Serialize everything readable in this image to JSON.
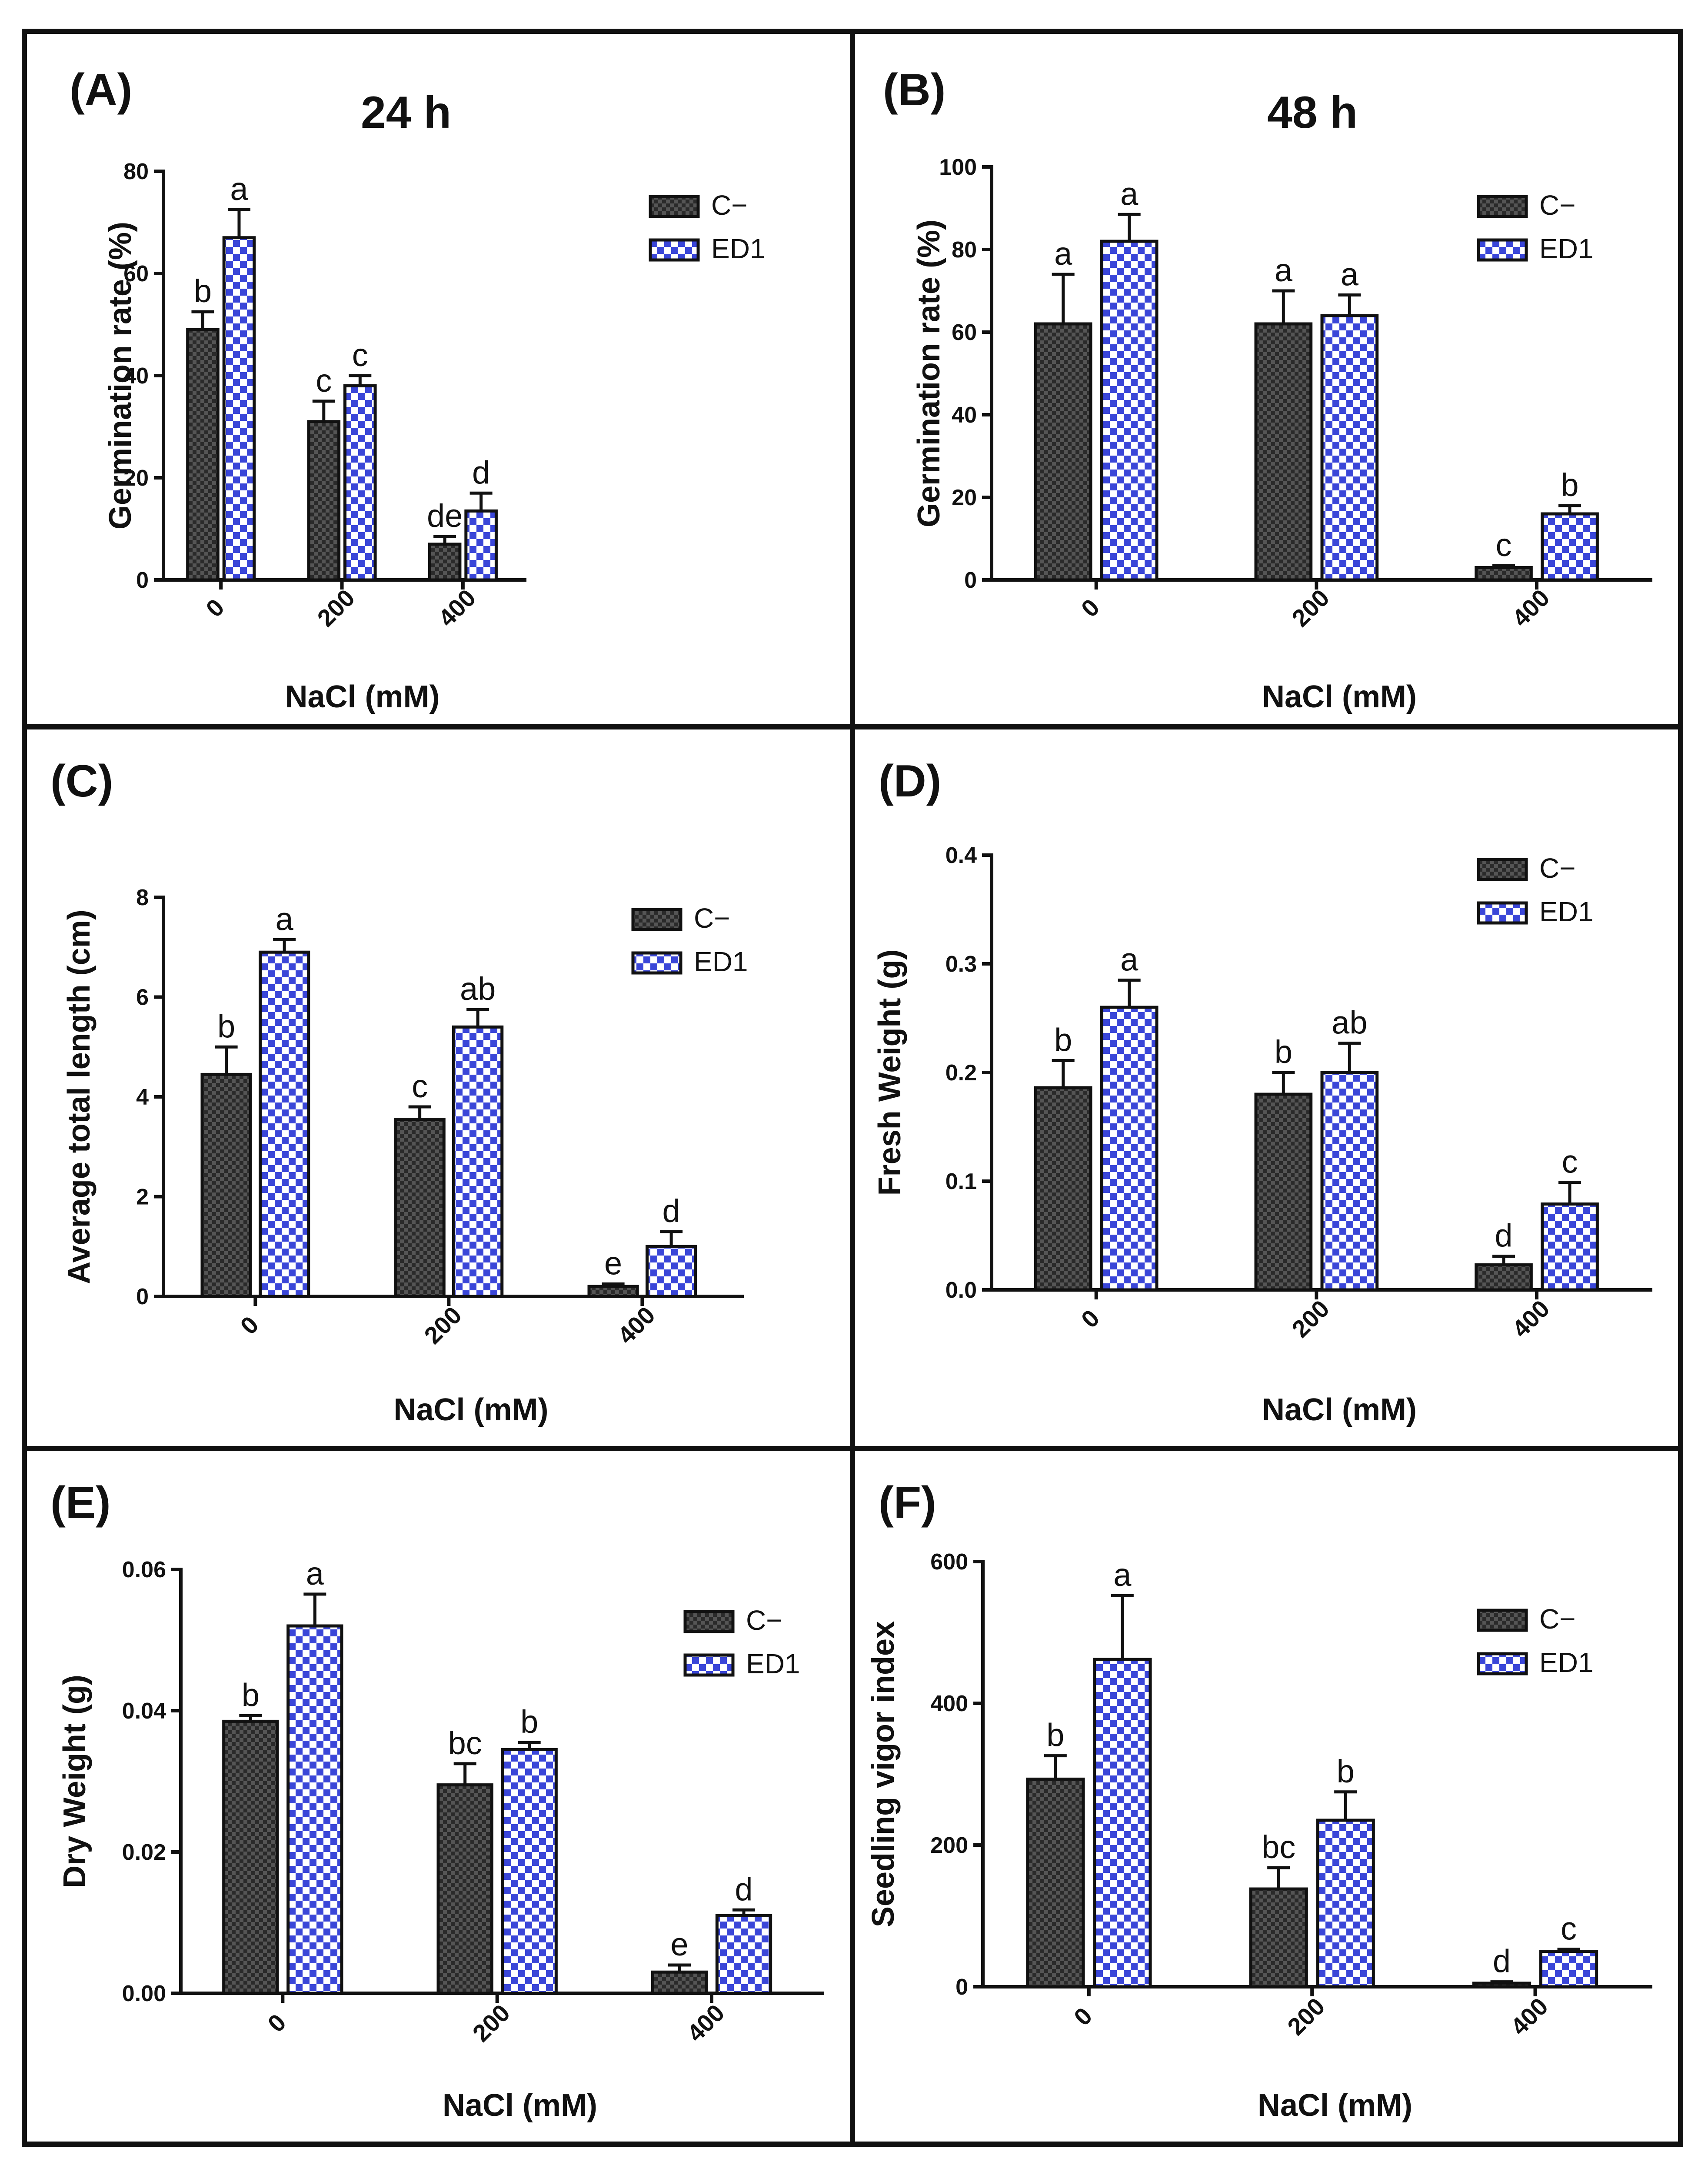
{
  "chart_data": [
    {
      "panel": "(A)",
      "type": "bar",
      "title": "24 h",
      "xlabel": "NaCl (mM)",
      "ylabel": "Germination rate (%)",
      "categories": [
        "0",
        "200",
        "400"
      ],
      "ylim": [
        0,
        80
      ],
      "yticks": [
        "0",
        "20",
        "40",
        "60",
        "80"
      ],
      "series": [
        {
          "name": "C−",
          "values": [
            49,
            31,
            7
          ],
          "errors": [
            3.5,
            4,
            1.5
          ],
          "letters": [
            "b",
            "c",
            "de"
          ]
        },
        {
          "name": "ED1",
          "values": [
            67,
            38,
            13.5
          ],
          "errors": [
            5.5,
            2,
            3.5
          ],
          "letters": [
            "a",
            "c",
            "d"
          ]
        }
      ]
    },
    {
      "panel": "(B)",
      "type": "bar",
      "title": "48 h",
      "xlabel": "NaCl (mM)",
      "ylabel": "Germination rate (%)",
      "categories": [
        "0",
        "200",
        "400"
      ],
      "ylim": [
        0,
        100
      ],
      "yticks": [
        "0",
        "20",
        "40",
        "60",
        "80",
        "100"
      ],
      "series": [
        {
          "name": "C−",
          "values": [
            62,
            62,
            3
          ],
          "errors": [
            12,
            8,
            0.5
          ],
          "letters": [
            "a",
            "a",
            "c"
          ]
        },
        {
          "name": "ED1",
          "values": [
            82,
            64,
            16
          ],
          "errors": [
            6.5,
            5,
            2
          ],
          "letters": [
            "a",
            "a",
            "b"
          ]
        }
      ]
    },
    {
      "panel": "(C)",
      "type": "bar",
      "title": "",
      "xlabel": "NaCl (mM)",
      "ylabel": "Average total length (cm)",
      "categories": [
        "0",
        "200",
        "400"
      ],
      "ylim": [
        0,
        8
      ],
      "yticks": [
        "0",
        "2",
        "4",
        "6",
        "8"
      ],
      "series": [
        {
          "name": "C−",
          "values": [
            4.45,
            3.55,
            0.2
          ],
          "errors": [
            0.55,
            0.25,
            0.05
          ],
          "letters": [
            "b",
            "c",
            "e"
          ]
        },
        {
          "name": "ED1",
          "values": [
            6.9,
            5.4,
            1.0
          ],
          "errors": [
            0.25,
            0.35,
            0.3
          ],
          "letters": [
            "a",
            "ab",
            "d"
          ]
        }
      ]
    },
    {
      "panel": "(D)",
      "type": "bar",
      "title": "",
      "xlabel": "NaCl (mM)",
      "ylabel": "Fresh Weight (g)",
      "categories": [
        "0",
        "200",
        "400"
      ],
      "ylim": [
        0,
        0.4
      ],
      "yticks": [
        "0.0",
        "0.1",
        "0.2",
        "0.3",
        "0.4"
      ],
      "series": [
        {
          "name": "C−",
          "values": [
            0.186,
            0.18,
            0.023
          ],
          "errors": [
            0.025,
            0.02,
            0.008
          ],
          "letters": [
            "b",
            "b",
            "d"
          ]
        },
        {
          "name": "ED1",
          "values": [
            0.26,
            0.2,
            0.079
          ],
          "errors": [
            0.025,
            0.027,
            0.02
          ],
          "letters": [
            "a",
            "ab",
            "c"
          ]
        }
      ]
    },
    {
      "panel": "(E)",
      "type": "bar",
      "title": "",
      "xlabel": "NaCl (mM)",
      "ylabel": "Dry Weight (g)",
      "categories": [
        "0",
        "200",
        "400"
      ],
      "ylim": [
        0,
        0.06
      ],
      "yticks": [
        "0.00",
        "0.02",
        "0.04",
        "0.06"
      ],
      "series": [
        {
          "name": "C−",
          "values": [
            0.0385,
            0.0295,
            0.003
          ],
          "errors": [
            0.0008,
            0.003,
            0.001
          ],
          "letters": [
            "b",
            "bc",
            "e"
          ]
        },
        {
          "name": "ED1",
          "values": [
            0.052,
            0.0345,
            0.011
          ],
          "errors": [
            0.0045,
            0.001,
            0.0008
          ],
          "letters": [
            "a",
            "b",
            "d"
          ]
        }
      ]
    },
    {
      "panel": "(F)",
      "type": "bar",
      "title": "",
      "xlabel": "NaCl (mM)",
      "ylabel": "Seedling vigor index",
      "categories": [
        "0",
        "200",
        "400"
      ],
      "ylim": [
        0,
        600
      ],
      "yticks": [
        "0",
        "200",
        "400",
        "600"
      ],
      "series": [
        {
          "name": "C−",
          "values": [
            293,
            138,
            5
          ],
          "errors": [
            33,
            30,
            2
          ],
          "letters": [
            "b",
            "bc",
            "d"
          ]
        },
        {
          "name": "ED1",
          "values": [
            462,
            235,
            50
          ],
          "errors": [
            90,
            40,
            3
          ],
          "letters": [
            "a",
            "b",
            "c"
          ]
        }
      ]
    }
  ],
  "colors": {
    "c_minus": "#5a5a5a",
    "c_minus_dark": "#262626",
    "ed1": "#3a46d8",
    "ed1_light": "#ffffff"
  }
}
